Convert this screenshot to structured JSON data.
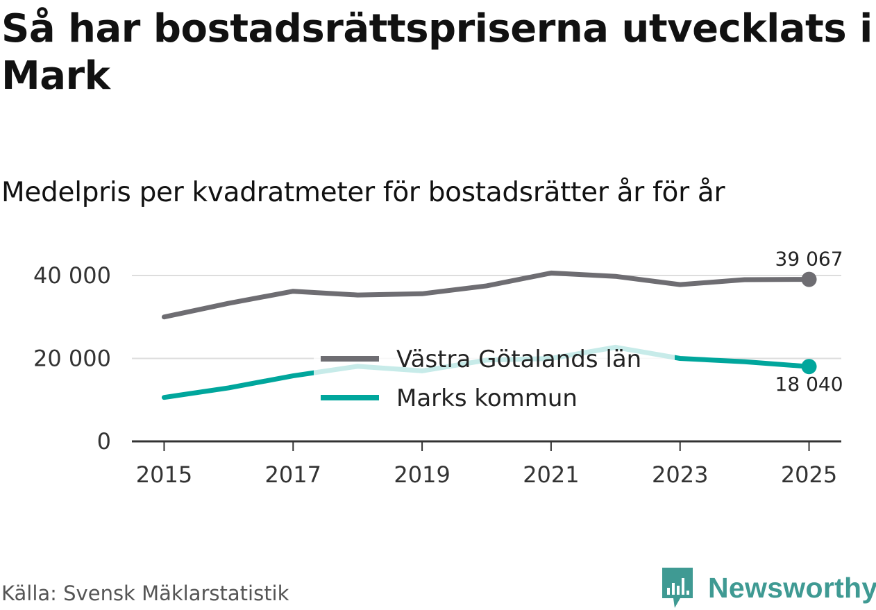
{
  "title": "Så har bostadsrättspriserna utvecklats i Mark",
  "subtitle": "Medelpris per kvadratmeter för bostadsrätter år för år",
  "source": "Källa: Svensk Mäklarstatistik",
  "brand": "Newsworthy",
  "colors": {
    "vastra_gotaland": "#6e6d72",
    "mark": "#00a69c",
    "grid": "#dddddd",
    "axis": "#333333",
    "brand": "#3f9a93"
  },
  "chart_data": {
    "type": "line",
    "title": "Så har bostadsrättspriserna utvecklats i Mark",
    "subtitle": "Medelpris per kvadratmeter för bostadsrätter år för år",
    "x": [
      2015,
      2016,
      2017,
      2018,
      2019,
      2020,
      2021,
      2022,
      2023,
      2024,
      2025
    ],
    "xticks": [
      "2015",
      "2017",
      "2019",
      "2021",
      "2023",
      "2025"
    ],
    "xlim": [
      2014.5,
      2025.5
    ],
    "yticks": [
      "0",
      "20 000",
      "40 000"
    ],
    "ylim": [
      0,
      40000
    ],
    "grid": true,
    "legend": "center",
    "series": [
      {
        "name": "Västra Götalands län",
        "values": [
          30000,
          33300,
          36200,
          35300,
          35600,
          37500,
          40600,
          39800,
          37800,
          39000,
          39067
        ],
        "end_label": "39 067"
      },
      {
        "name": "Marks kommun",
        "values": [
          10600,
          12900,
          15800,
          18100,
          17000,
          19600,
          20000,
          22700,
          20000,
          19200,
          18040
        ],
        "end_label": "18 040"
      }
    ]
  }
}
